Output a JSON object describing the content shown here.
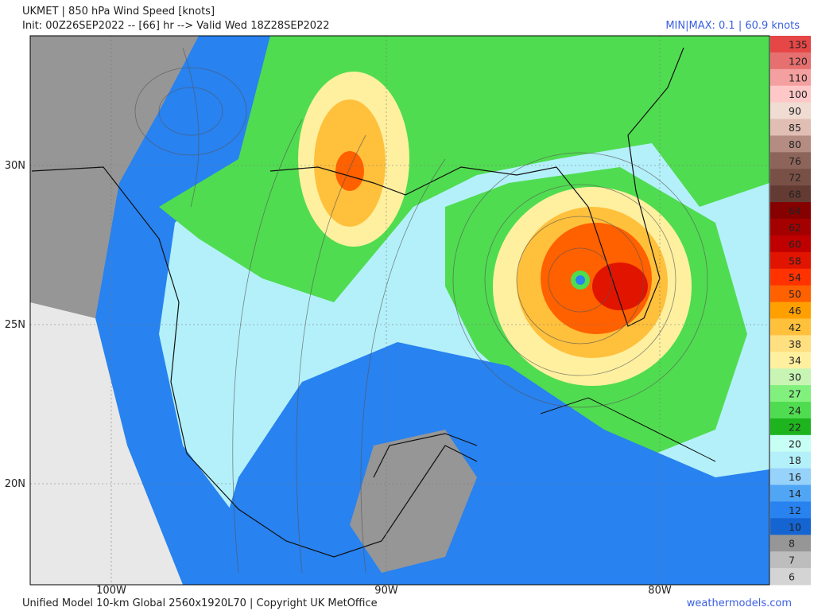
{
  "header": {
    "title": "UKMET | 850 hPa Wind Speed [knots]",
    "init": "Init: 00Z26SEP2022 -- [66] hr --> Valid Wed 18Z28SEP2022",
    "minmax": "MIN|MAX: 0.1 | 60.9 knots"
  },
  "map": {
    "lat_labels": [
      "30N",
      "25N",
      "20N"
    ],
    "lon_labels": [
      "100W",
      "90W",
      "80W"
    ]
  },
  "colorbar": {
    "levels": [
      "135",
      "120",
      "110",
      "100",
      "90",
      "85",
      "80",
      "76",
      "72",
      "68",
      "64",
      "62",
      "60",
      "58",
      "54",
      "50",
      "46",
      "42",
      "38",
      "34",
      "30",
      "27",
      "24",
      "22",
      "20",
      "18",
      "16",
      "14",
      "12",
      "10",
      "8",
      "7",
      "6"
    ],
    "colors": [
      "#e64646",
      "#e67070",
      "#f5a0a0",
      "#ffc8c8",
      "#f0dcd2",
      "#e1beb4",
      "#b48c82",
      "#8c645a",
      "#785046",
      "#643b32",
      "#870000",
      "#a50000",
      "#c00000",
      "#e11400",
      "#ff3200",
      "#ff6000",
      "#ffa000",
      "#ffc03c",
      "#ffe080",
      "#fff0a0",
      "#c8f5b4",
      "#82f07d",
      "#50dc50",
      "#1eb41e",
      "#c8fff5",
      "#b4f0fa",
      "#96d2fa",
      "#50a5f5",
      "#2882f0",
      "#1464d2",
      "#969696",
      "#bdbdbd",
      "#d4d4d4"
    ]
  },
  "footer": {
    "credit": "Unified Model 10-km Global 2560x1920L70 | Copyright UK MetOffice",
    "site": "weathermodels.com"
  }
}
